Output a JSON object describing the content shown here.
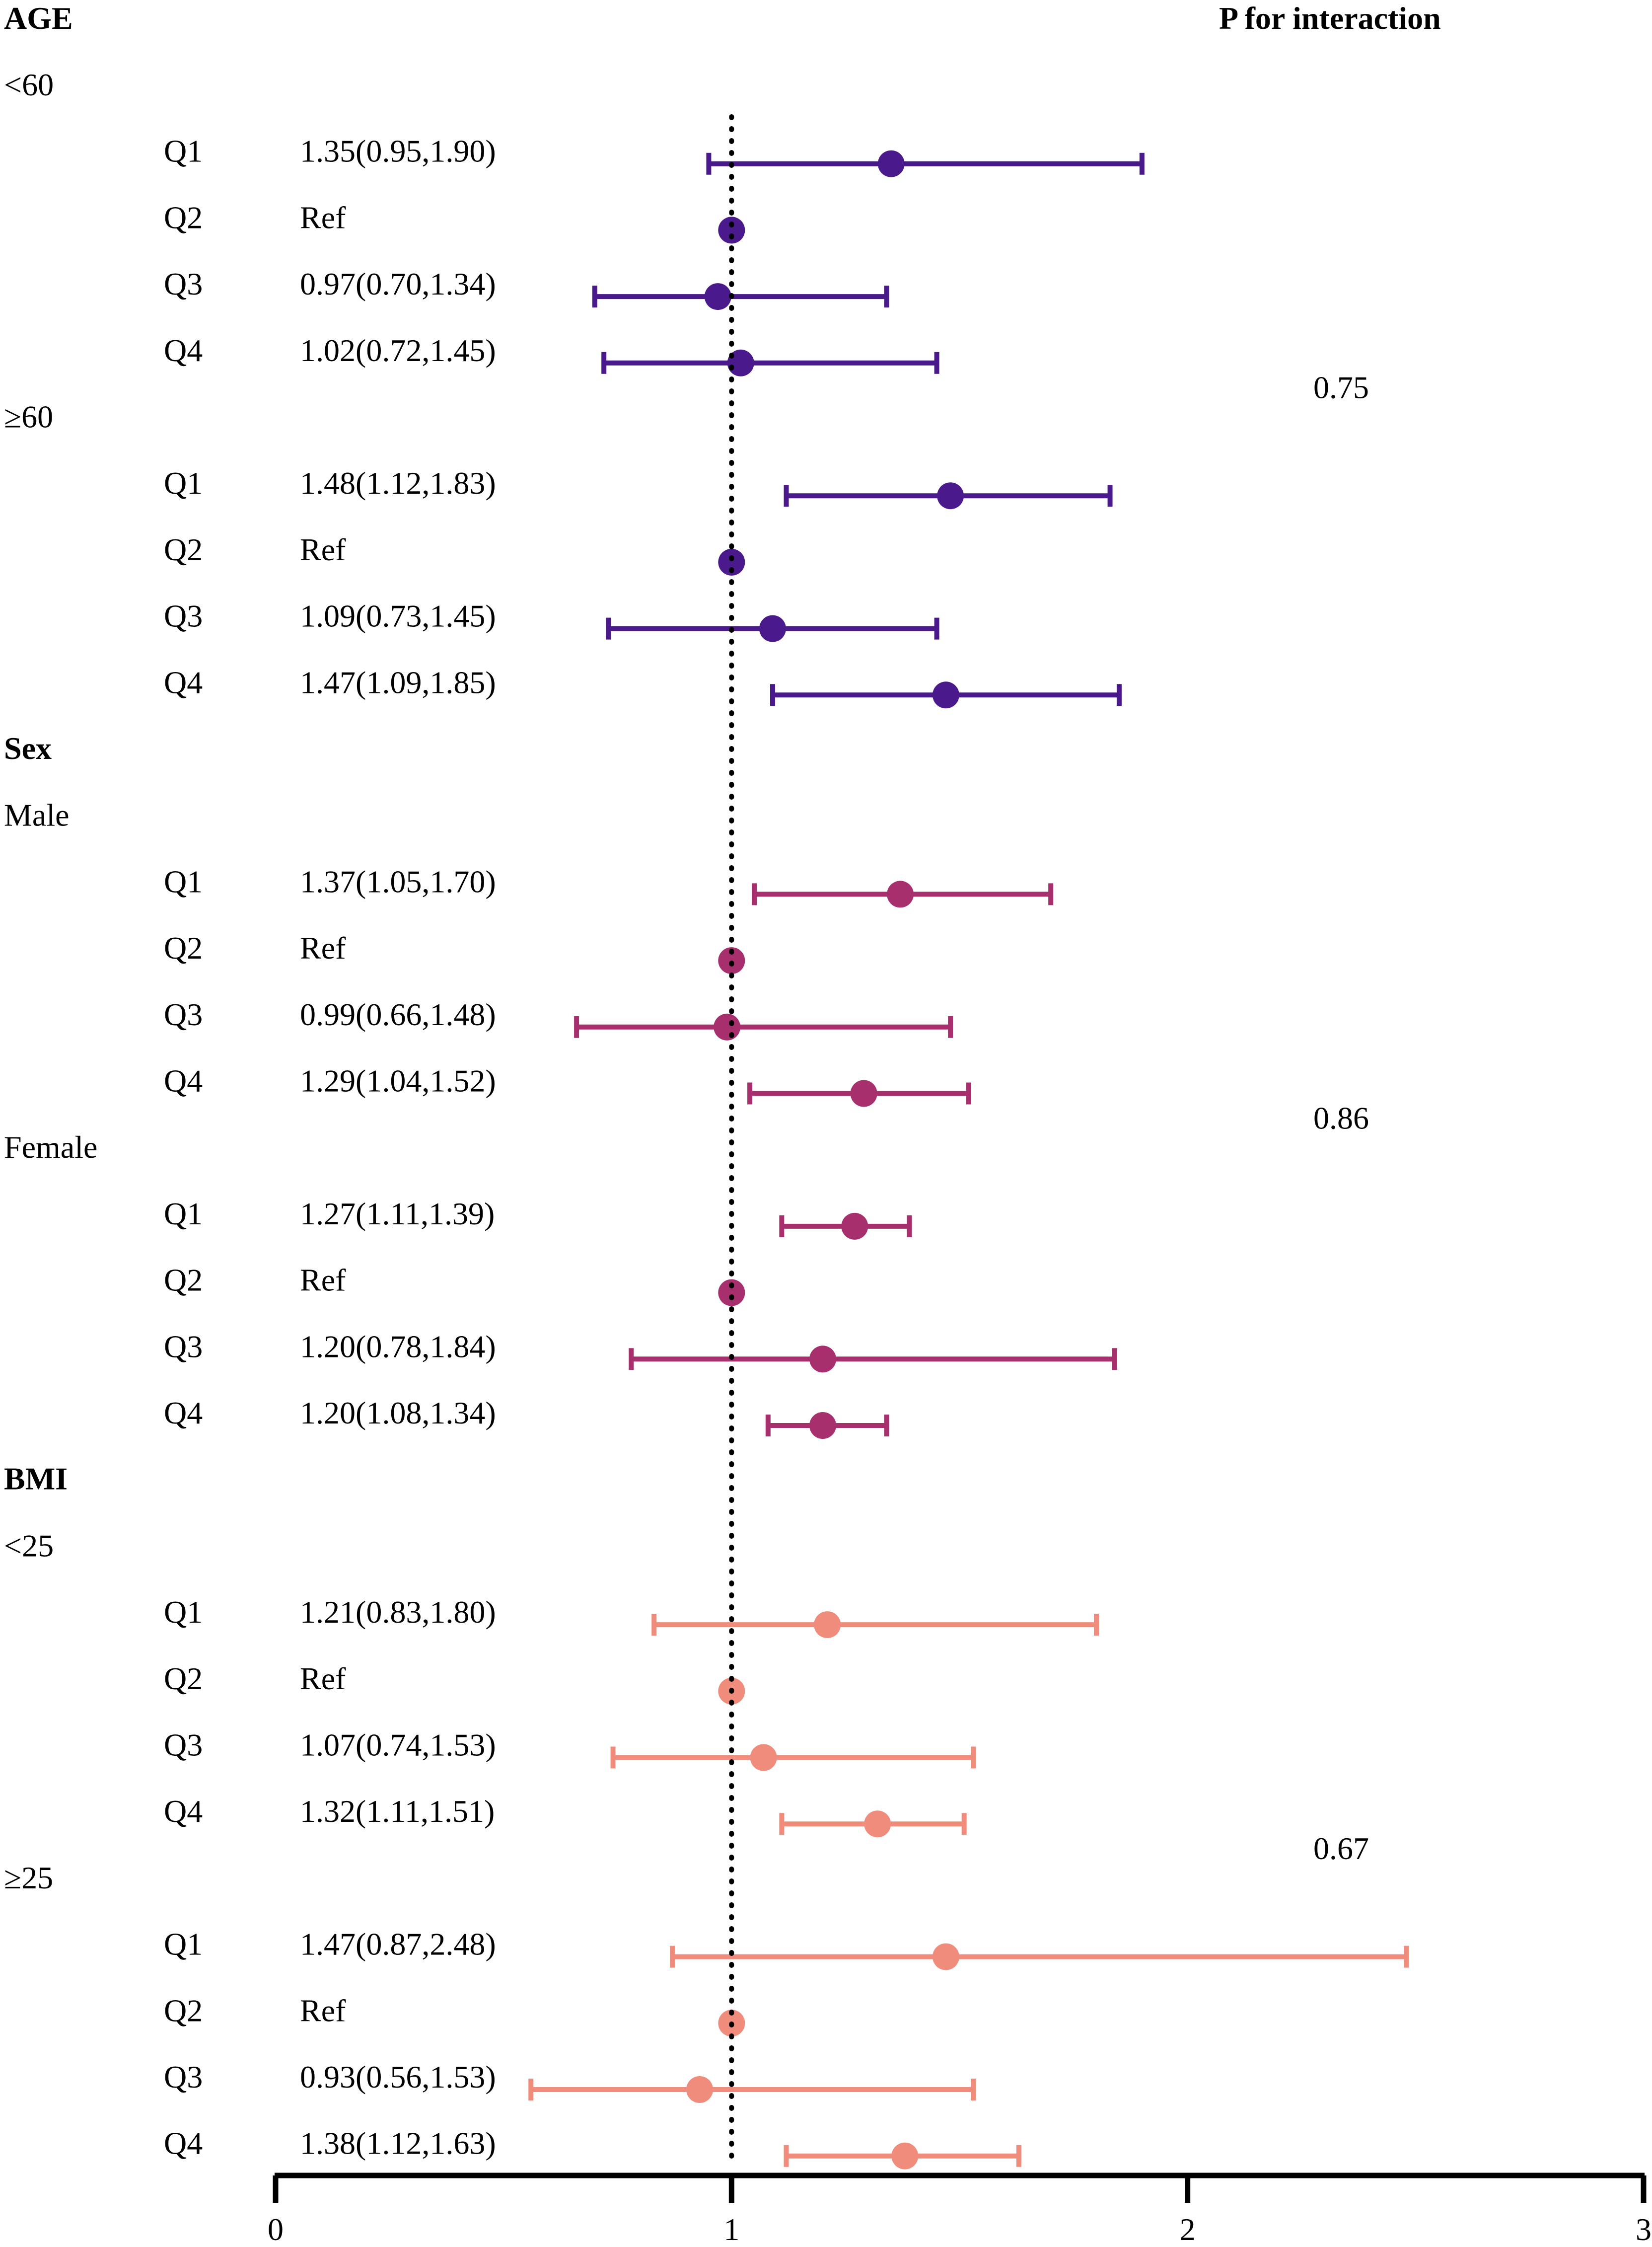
{
  "chart_data": {
    "type": "forest",
    "x_axis": {
      "min": 0,
      "max": 3,
      "ticks": [
        0,
        1,
        2,
        3
      ],
      "reference_line": 1
    },
    "column_headers": {
      "left": "AGE",
      "right": "P for interaction"
    },
    "colors": {
      "age": "#4a1a8c",
      "sex": "#a82f6e",
      "bmi": "#f08c7c"
    },
    "sections": [
      {
        "label": "AGE",
        "color_key": "age",
        "p_interaction": "0.75",
        "label_is_header": false,
        "groups": [
          {
            "label": "<60",
            "rows": [
              {
                "q": "Q1",
                "text": "1.35(0.95,1.90)",
                "est": 1.35,
                "lo": 0.95,
                "hi": 1.9
              },
              {
                "q": "Q2",
                "text": "Ref",
                "est": 1.0,
                "lo": null,
                "hi": null
              },
              {
                "q": "Q3",
                "text": "0.97(0.70,1.34)",
                "est": 0.97,
                "lo": 0.7,
                "hi": 1.34
              },
              {
                "q": "Q4",
                "text": "1.02(0.72,1.45)",
                "est": 1.02,
                "lo": 0.72,
                "hi": 1.45
              }
            ]
          },
          {
            "label": "≥60",
            "rows": [
              {
                "q": "Q1",
                "text": "1.48(1.12,1.83)",
                "est": 1.48,
                "lo": 1.12,
                "hi": 1.83
              },
              {
                "q": "Q2",
                "text": "Ref",
                "est": 1.0,
                "lo": null,
                "hi": null
              },
              {
                "q": "Q3",
                "text": "1.09(0.73,1.45)",
                "est": 1.09,
                "lo": 0.73,
                "hi": 1.45
              },
              {
                "q": "Q4",
                "text": "1.47(1.09,1.85)",
                "est": 1.47,
                "lo": 1.09,
                "hi": 1.85
              }
            ]
          }
        ]
      },
      {
        "label": "Sex",
        "color_key": "sex",
        "p_interaction": "0.86",
        "label_is_header": true,
        "groups": [
          {
            "label": "Male",
            "rows": [
              {
                "q": "Q1",
                "text": "1.37(1.05,1.70)",
                "est": 1.37,
                "lo": 1.05,
                "hi": 1.7
              },
              {
                "q": "Q2",
                "text": "Ref",
                "est": 1.0,
                "lo": null,
                "hi": null
              },
              {
                "q": "Q3",
                "text": "0.99(0.66,1.48)",
                "est": 0.99,
                "lo": 0.66,
                "hi": 1.48
              },
              {
                "q": "Q4",
                "text": "1.29(1.04,1.52)",
                "est": 1.29,
                "lo": 1.04,
                "hi": 1.52
              }
            ]
          },
          {
            "label": "Female",
            "rows": [
              {
                "q": "Q1",
                "text": "1.27(1.11,1.39)",
                "est": 1.27,
                "lo": 1.11,
                "hi": 1.39
              },
              {
                "q": "Q2",
                "text": "Ref",
                "est": 1.0,
                "lo": null,
                "hi": null
              },
              {
                "q": "Q3",
                "text": "1.20(0.78,1.84)",
                "est": 1.2,
                "lo": 0.78,
                "hi": 1.84
              },
              {
                "q": "Q4",
                "text": "1.20(1.08,1.34)",
                "est": 1.2,
                "lo": 1.08,
                "hi": 1.34
              }
            ]
          }
        ]
      },
      {
        "label": "BMI",
        "color_key": "bmi",
        "p_interaction": "0.67",
        "label_is_header": true,
        "groups": [
          {
            "label": "<25",
            "rows": [
              {
                "q": "Q1",
                "text": "1.21(0.83,1.80)",
                "est": 1.21,
                "lo": 0.83,
                "hi": 1.8
              },
              {
                "q": "Q2",
                "text": "Ref",
                "est": 1.0,
                "lo": null,
                "hi": null
              },
              {
                "q": "Q3",
                "text": "1.07(0.74,1.53)",
                "est": 1.07,
                "lo": 0.74,
                "hi": 1.53
              },
              {
                "q": "Q4",
                "text": "1.32(1.11,1.51)",
                "est": 1.32,
                "lo": 1.11,
                "hi": 1.51
              }
            ]
          },
          {
            "label": "≥25",
            "rows": [
              {
                "q": "Q1",
                "text": "1.47(0.87,2.48)",
                "est": 1.47,
                "lo": 0.87,
                "hi": 2.48
              },
              {
                "q": "Q2",
                "text": "Ref",
                "est": 1.0,
                "lo": null,
                "hi": null
              },
              {
                "q": "Q3",
                "text": "0.93(0.56,1.53)",
                "est": 0.93,
                "lo": 0.56,
                "hi": 1.53
              },
              {
                "q": "Q4",
                "text": "1.38(1.12,1.63)",
                "est": 1.38,
                "lo": 1.12,
                "hi": 1.63
              }
            ]
          }
        ]
      }
    ]
  }
}
